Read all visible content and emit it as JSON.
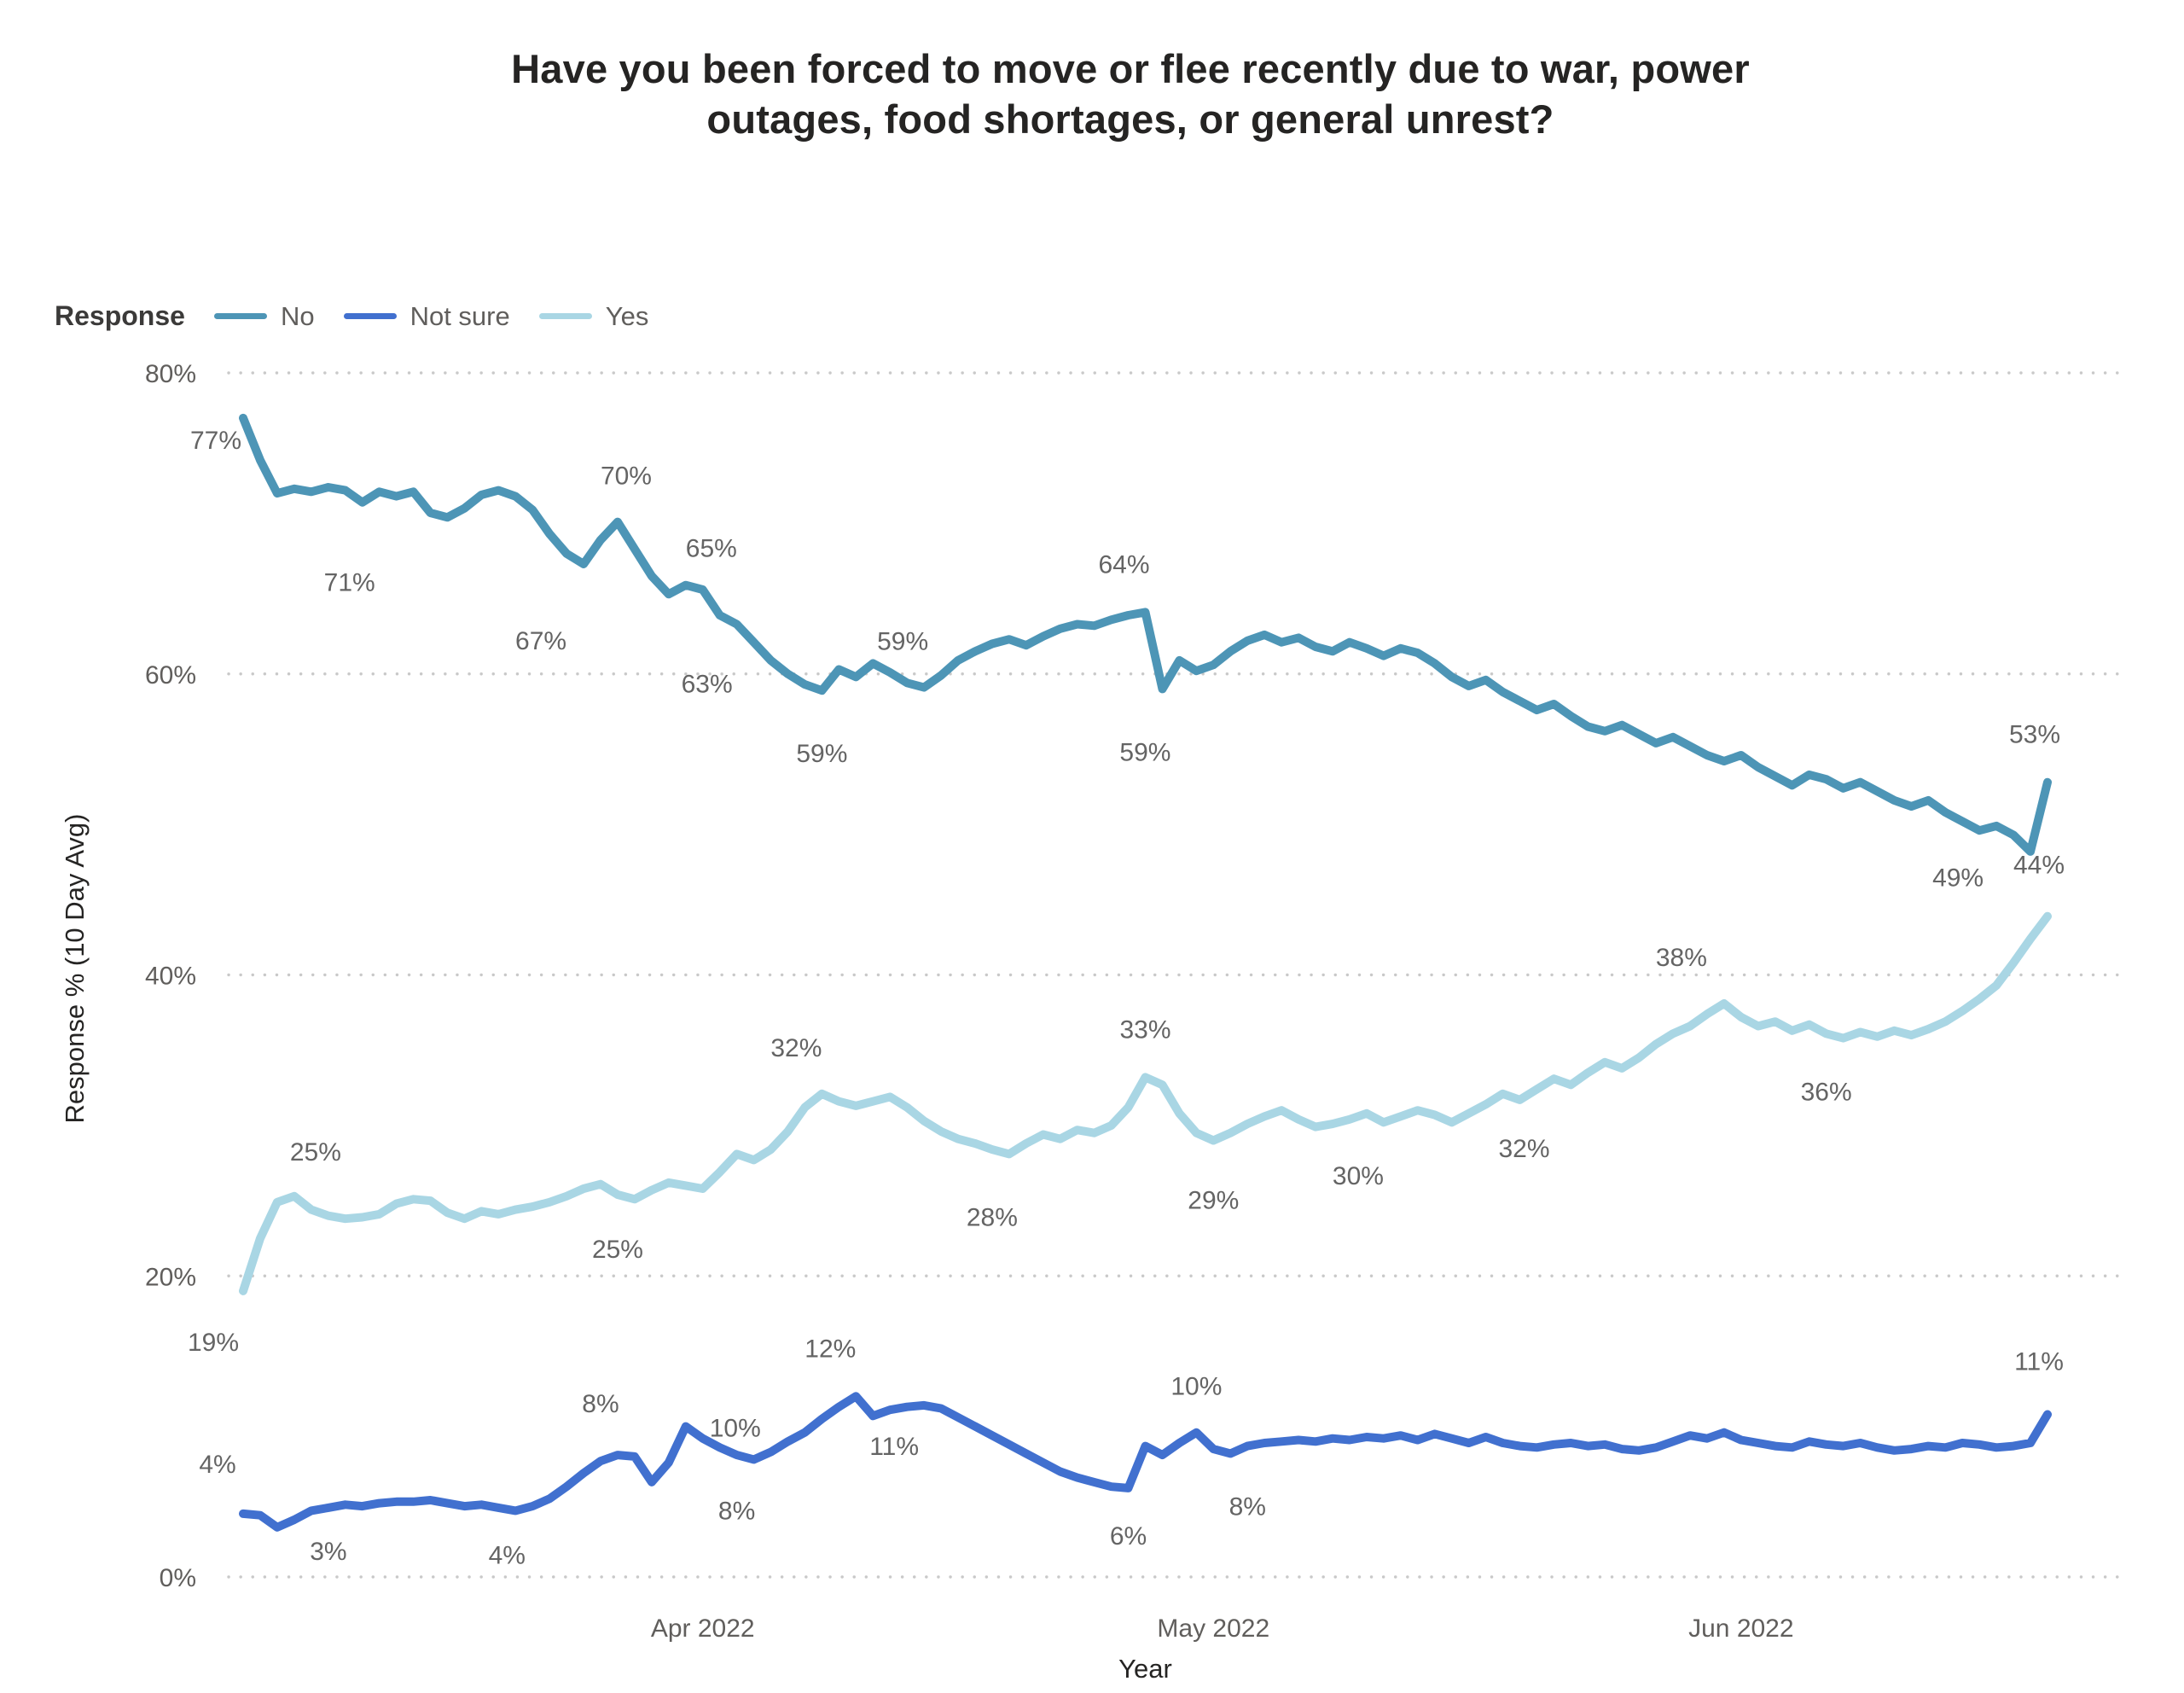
{
  "title_lines": [
    "Have you been forced to move or flee recently due to war, power",
    "outages, food shortages, or general unrest?"
  ],
  "legend": {
    "title": "Response",
    "position": "top-left"
  },
  "chart_data": {
    "type": "line",
    "title": "Have you been forced to move or flee recently due to war, power outages, food shortages, or general unrest?",
    "x_axis": {
      "label": "Year",
      "unit": "day",
      "total_points": 107,
      "ticks": [
        {
          "day": 27,
          "label": "Apr 2022"
        },
        {
          "day": 57,
          "label": "May 2022"
        },
        {
          "day": 88,
          "label": "Jun 2022"
        }
      ]
    },
    "y_axis": {
      "label": "Response % (10 Day Avg)",
      "min": 0,
      "max": 80,
      "grid": "dotted",
      "ticks": [
        {
          "value": 0,
          "label": "0%"
        },
        {
          "value": 20,
          "label": "20%"
        },
        {
          "value": 40,
          "label": "40%"
        },
        {
          "value": 60,
          "label": "60%"
        },
        {
          "value": 80,
          "label": "80%"
        }
      ]
    },
    "series": [
      {
        "id": "no",
        "name": "No",
        "color": "#4d95b6",
        "values": [
          77.0,
          74.2,
          72.0,
          72.3,
          72.1,
          72.4,
          72.2,
          71.4,
          72.1,
          71.8,
          72.1,
          70.7,
          70.4,
          71.0,
          71.9,
          72.2,
          71.8,
          70.9,
          69.3,
          68.0,
          67.3,
          68.9,
          70.1,
          68.3,
          66.5,
          65.3,
          65.9,
          65.6,
          63.9,
          63.3,
          62.1,
          60.9,
          60.0,
          59.3,
          58.9,
          60.3,
          59.8,
          60.7,
          60.1,
          59.4,
          59.1,
          59.9,
          60.9,
          61.5,
          62.0,
          62.3,
          61.9,
          62.5,
          63.0,
          63.3,
          63.2,
          63.6,
          63.9,
          64.1,
          59.0,
          60.9,
          60.2,
          60.6,
          61.5,
          62.2,
          62.6,
          62.1,
          62.4,
          61.8,
          61.5,
          62.1,
          61.7,
          61.2,
          61.7,
          61.4,
          60.7,
          59.8,
          59.2,
          59.6,
          58.8,
          58.2,
          57.6,
          58.0,
          57.2,
          56.5,
          56.2,
          56.6,
          56.0,
          55.4,
          55.8,
          55.2,
          54.6,
          54.2,
          54.6,
          53.8,
          53.2,
          52.6,
          53.3,
          53.0,
          52.4,
          52.8,
          52.2,
          51.6,
          51.2,
          51.6,
          50.8,
          50.2,
          49.6,
          49.9,
          49.3,
          48.2,
          52.8
        ],
        "labels": [
          {
            "day": 0,
            "text": "77%",
            "dx": -32,
            "dy": 36
          },
          {
            "day": 7,
            "text": "71%",
            "dx": -15,
            "dy": 104
          },
          {
            "day": 20,
            "text": "67%",
            "dx": -50,
            "dy": 100
          },
          {
            "day": 22,
            "text": "70%",
            "dx": 10,
            "dy": -44
          },
          {
            "day": 25,
            "text": "65%",
            "dx": 50,
            "dy": -44
          },
          {
            "day": 29,
            "text": "63%",
            "dx": -35,
            "dy": 80
          },
          {
            "day": 34,
            "text": "59%",
            "dx": 0,
            "dy": 84
          },
          {
            "day": 40,
            "text": "59%",
            "dx": -25,
            "dy": -44
          },
          {
            "day": 53,
            "text": "64%",
            "dx": -25,
            "dy": -46
          },
          {
            "day": 54,
            "text": "59%",
            "dx": -20,
            "dy": 84
          },
          {
            "day": 104,
            "text": "49%",
            "dx": -65,
            "dy": 60
          },
          {
            "day": 106,
            "text": "53%",
            "dx": -15,
            "dy": -46
          }
        ]
      },
      {
        "id": "not-sure",
        "name": "Not sure",
        "color": "#4170cf",
        "values": [
          4.2,
          4.1,
          3.3,
          3.8,
          4.4,
          4.6,
          4.8,
          4.7,
          4.9,
          5.0,
          5.0,
          5.1,
          4.9,
          4.7,
          4.8,
          4.6,
          4.4,
          4.7,
          5.2,
          6.0,
          6.9,
          7.7,
          8.1,
          8.0,
          6.3,
          7.6,
          10.0,
          9.2,
          8.6,
          8.1,
          7.8,
          8.3,
          9.0,
          9.6,
          10.5,
          11.3,
          12.0,
          10.7,
          11.1,
          11.3,
          11.4,
          11.2,
          10.6,
          10.0,
          9.4,
          8.8,
          8.2,
          7.6,
          7.0,
          6.6,
          6.3,
          6.0,
          5.9,
          8.7,
          8.1,
          8.9,
          9.6,
          8.5,
          8.2,
          8.7,
          8.9,
          9.0,
          9.1,
          9.0,
          9.2,
          9.1,
          9.3,
          9.2,
          9.4,
          9.1,
          9.5,
          9.2,
          8.9,
          9.3,
          8.9,
          8.7,
          8.6,
          8.8,
          8.9,
          8.7,
          8.8,
          8.5,
          8.4,
          8.6,
          9.0,
          9.4,
          9.2,
          9.6,
          9.1,
          8.9,
          8.7,
          8.6,
          9.0,
          8.8,
          8.7,
          8.9,
          8.6,
          8.4,
          8.5,
          8.7,
          8.6,
          8.9,
          8.8,
          8.6,
          8.7,
          8.9,
          10.8
        ],
        "labels": [
          {
            "day": 0,
            "text": "4%",
            "dx": -30,
            "dy": -48
          },
          {
            "day": 2,
            "text": "3%",
            "dx": 60,
            "dy": 38
          },
          {
            "day": 16,
            "text": "4%",
            "dx": -10,
            "dy": 62
          },
          {
            "day": 22,
            "text": "8%",
            "dx": -20,
            "dy": -50
          },
          {
            "day": 26,
            "text": "10%",
            "dx": 58,
            "dy": 12
          },
          {
            "day": 30,
            "text": "8%",
            "dx": -20,
            "dy": 70
          },
          {
            "day": 36,
            "text": "12%",
            "dx": -30,
            "dy": -46
          },
          {
            "day": 40,
            "text": "11%",
            "dx": -35,
            "dy": 58
          },
          {
            "day": 52,
            "text": "6%",
            "dx": 0,
            "dy": 66
          },
          {
            "day": 56,
            "text": "10%",
            "dx": 0,
            "dy": -44
          },
          {
            "day": 58,
            "text": "8%",
            "dx": 20,
            "dy": 72
          },
          {
            "day": 106,
            "text": "11%",
            "dx": -10,
            "dy": -52
          }
        ]
      },
      {
        "id": "yes",
        "name": "Yes",
        "color": "#a9d6e4",
        "values": [
          19.0,
          22.5,
          24.9,
          25.3,
          24.4,
          24.0,
          23.8,
          23.9,
          24.1,
          24.8,
          25.1,
          25.0,
          24.2,
          23.8,
          24.3,
          24.1,
          24.4,
          24.6,
          24.9,
          25.3,
          25.8,
          26.1,
          25.4,
          25.1,
          25.7,
          26.2,
          26.0,
          25.8,
          26.9,
          28.1,
          27.7,
          28.4,
          29.6,
          31.2,
          32.1,
          31.6,
          31.3,
          31.6,
          31.9,
          31.2,
          30.3,
          29.6,
          29.1,
          28.8,
          28.4,
          28.1,
          28.8,
          29.4,
          29.1,
          29.7,
          29.5,
          30.0,
          31.2,
          33.2,
          32.7,
          30.8,
          29.5,
          29.0,
          29.5,
          30.1,
          30.6,
          31.0,
          30.4,
          29.9,
          30.1,
          30.4,
          30.8,
          30.2,
          30.6,
          31.0,
          30.7,
          30.2,
          30.8,
          31.4,
          32.1,
          31.7,
          32.4,
          33.1,
          32.7,
          33.5,
          34.2,
          33.8,
          34.5,
          35.4,
          36.1,
          36.6,
          37.4,
          38.1,
          37.2,
          36.6,
          36.9,
          36.3,
          36.7,
          36.1,
          35.8,
          36.2,
          35.9,
          36.3,
          36.0,
          36.4,
          36.9,
          37.6,
          38.4,
          39.3,
          40.8,
          42.4,
          43.9
        ],
        "labels": [
          {
            "day": 0,
            "text": "19%",
            "dx": -35,
            "dy": 70
          },
          {
            "day": 3,
            "text": "25%",
            "dx": 25,
            "dy": -42
          },
          {
            "day": 22,
            "text": "25%",
            "dx": 0,
            "dy": 74
          },
          {
            "day": 34,
            "text": "32%",
            "dx": -30,
            "dy": -44
          },
          {
            "day": 45,
            "text": "28%",
            "dx": -20,
            "dy": 84
          },
          {
            "day": 53,
            "text": "33%",
            "dx": 0,
            "dy": -46
          },
          {
            "day": 57,
            "text": "29%",
            "dx": 0,
            "dy": 80
          },
          {
            "day": 65,
            "text": "30%",
            "dx": 10,
            "dy": 76
          },
          {
            "day": 74,
            "text": "32%",
            "dx": 25,
            "dy": 74
          },
          {
            "day": 87,
            "text": "38%",
            "dx": -50,
            "dy": -44
          },
          {
            "day": 93,
            "text": "36%",
            "dx": 0,
            "dy": 78
          },
          {
            "day": 106,
            "text": "44%",
            "dx": -10,
            "dy": -50
          }
        ]
      }
    ]
  }
}
